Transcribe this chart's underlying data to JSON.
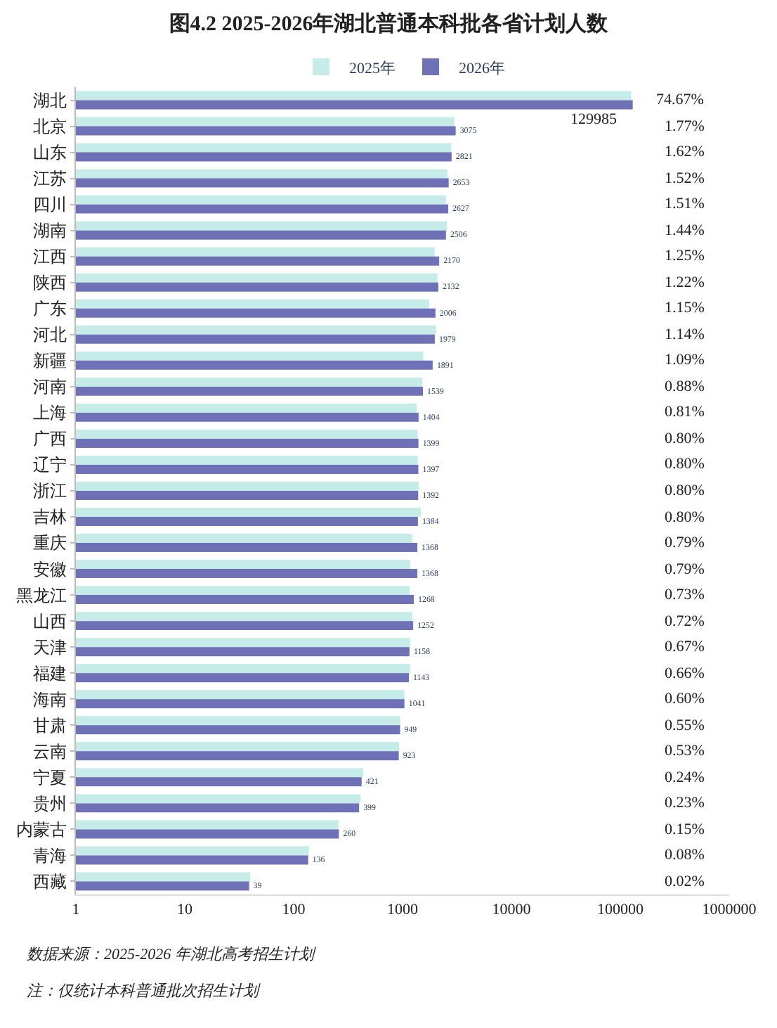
{
  "chart_data": {
    "type": "bar",
    "orientation": "horizontal",
    "title": "图4.2 2025-2026年湖北普通本科批各省计划人数",
    "categories": [
      "湖北",
      "北京",
      "山东",
      "江苏",
      "四川",
      "湖南",
      "江西",
      "陕西",
      "广东",
      "河北",
      "新疆",
      "河南",
      "上海",
      "广西",
      "辽宁",
      "浙江",
      "吉林",
      "重庆",
      "安徽",
      "黑龙江",
      "山西",
      "天津",
      "福建",
      "海南",
      "甘肃",
      "云南",
      "宁夏",
      "贵州",
      "内蒙古",
      "青海",
      "西藏"
    ],
    "series": [
      {
        "name": "2025年",
        "color": "#c5ece9",
        "values": [
          126000,
          2990,
          2800,
          2580,
          2500,
          2550,
          1970,
          2090,
          1755,
          2030,
          1550,
          1520,
          1350,
          1380,
          1380,
          1410,
          1470,
          1230,
          1180,
          1160,
          1230,
          1180,
          1180,
          1040,
          950,
          930,
          435,
          412,
          258,
          138,
          40
        ]
      },
      {
        "name": "2026年",
        "color": "#6e71b5",
        "values": [
          129985,
          3075,
          2821,
          2653,
          2627,
          2506,
          2170,
          2132,
          2006,
          1979,
          1891,
          1539,
          1404,
          1399,
          1397,
          1392,
          1384,
          1368,
          1368,
          1268,
          1252,
          1158,
          1143,
          1041,
          949,
          923,
          421,
          399,
          260,
          136,
          39
        ],
        "value_labels": [
          "129985",
          "3075",
          "2821",
          "2653",
          "2627",
          "2506",
          "2170",
          "2132",
          "2006",
          "1979",
          "1891",
          "1539",
          "1404",
          "1399",
          "1397",
          "1392",
          "1384",
          "1368",
          "1368",
          "1268",
          "1252",
          "1158",
          "1143",
          "1041",
          "949",
          "923",
          "421",
          "399",
          "260",
          "136",
          "39"
        ]
      }
    ],
    "log": "x",
    "xlim": [
      1,
      1000000
    ],
    "xticks": [
      1,
      10,
      100,
      1000,
      10000,
      100000,
      1000000
    ],
    "legend": "top",
    "annotations": [
      "74.67%",
      "1.77%",
      "1.62%",
      "1.52%",
      "1.51%",
      "1.44%",
      "1.25%",
      "1.22%",
      "1.15%",
      "1.14%",
      "1.09%",
      "0.88%",
      "0.81%",
      "0.80%",
      "0.80%",
      "0.80%",
      "0.80%",
      "0.79%",
      "0.79%",
      "0.73%",
      "0.72%",
      "0.67%",
      "0.66%",
      "0.60%",
      "0.55%",
      "0.53%",
      "0.24%",
      "0.23%",
      "0.15%",
      "0.08%",
      "0.02%",
      "数据来源：2025-2026 年湖北高考招生计划",
      "注：仅统计本科普通批次招生计划"
    ]
  }
}
